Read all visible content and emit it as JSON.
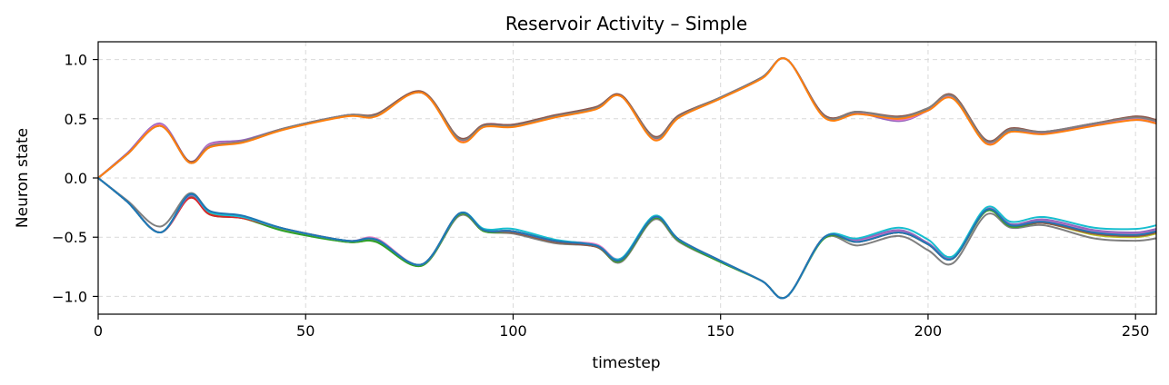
{
  "chart_data": {
    "type": "line",
    "title": "Reservoir Activity – Simple",
    "xlabel": "timestep",
    "ylabel": "Neuron state",
    "xlim": [
      0,
      255
    ],
    "ylim": [
      -1.15,
      1.15
    ],
    "grid": true,
    "legend": "none",
    "xticks": [
      0,
      50,
      100,
      150,
      200,
      250
    ],
    "xtick_labels": [
      "0",
      "50",
      "100",
      "150",
      "200",
      "250"
    ],
    "yticks": [
      1.0,
      0.5,
      0.0,
      -0.5,
      -1.0
    ],
    "ytick_labels": [
      "1.0",
      "0.5",
      "0.0",
      "−0.5",
      "−1.0"
    ],
    "x_knots": [
      0,
      7,
      15,
      22,
      27,
      35,
      45,
      60,
      67,
      78,
      87,
      93,
      100,
      110,
      120,
      126,
      134,
      140,
      150,
      160,
      166,
      175,
      183,
      193,
      200,
      206,
      214,
      220,
      228,
      240,
      250,
      255
    ],
    "upper_base": [
      0.0,
      0.2,
      0.44,
      0.13,
      0.27,
      0.31,
      0.42,
      0.53,
      0.53,
      0.72,
      0.32,
      0.44,
      0.44,
      0.52,
      0.59,
      0.69,
      0.33,
      0.52,
      0.68,
      0.85,
      1.0,
      0.52,
      0.55,
      0.5,
      0.58,
      0.68,
      0.3,
      0.4,
      0.38,
      0.45,
      0.5,
      0.47
    ],
    "lower_base": [
      0.0,
      -0.2,
      -0.46,
      -0.15,
      -0.29,
      -0.33,
      -0.43,
      -0.53,
      -0.52,
      -0.73,
      -0.3,
      -0.44,
      -0.45,
      -0.53,
      -0.57,
      -0.69,
      -0.33,
      -0.52,
      -0.7,
      -0.87,
      -1.0,
      -0.5,
      -0.54,
      -0.46,
      -0.56,
      -0.68,
      -0.27,
      -0.4,
      -0.37,
      -0.46,
      -0.48,
      -0.45
    ],
    "series": [
      {
        "group": "upper",
        "color": "#1f77b4",
        "offsets": [
          0,
          0,
          0.01,
          0,
          0,
          0,
          0,
          0,
          0,
          0,
          0,
          0,
          0,
          0,
          0,
          0,
          0,
          0,
          0,
          0,
          0,
          0,
          0,
          0,
          0,
          0,
          0,
          0,
          0,
          0,
          0,
          0
        ]
      },
      {
        "group": "upper",
        "color": "#9467bd",
        "offsets": [
          0,
          0.01,
          0.02,
          0.01,
          0.02,
          0.01,
          0,
          0,
          0,
          0,
          0.01,
          0.01,
          0.01,
          0,
          0,
          0,
          0.01,
          0,
          0,
          0,
          0,
          0.01,
          0,
          -0.02,
          -0.01,
          0,
          0,
          0.01,
          0,
          0,
          -0.01,
          -0.01
        ]
      },
      {
        "group": "upper",
        "color": "#e377c2",
        "offsets": [
          0,
          0,
          0.01,
          0,
          0.01,
          0,
          0,
          0,
          0,
          0,
          0,
          0,
          0,
          0,
          0,
          0,
          0,
          0,
          0,
          0,
          0,
          0,
          0.01,
          -0.01,
          -0.01,
          0,
          0,
          0.01,
          0.01,
          0.01,
          0,
          0
        ]
      },
      {
        "group": "upper",
        "color": "#8c564b",
        "offsets": [
          0,
          0,
          0,
          0.01,
          0,
          0,
          0,
          0,
          0.01,
          0.01,
          0.02,
          0.01,
          0.01,
          0.01,
          0.01,
          0.01,
          0.02,
          0.01,
          0,
          0,
          0,
          0.01,
          0.01,
          0.02,
          0.01,
          0.02,
          0.02,
          0.02,
          0.01,
          0.01,
          0.02,
          0.02
        ]
      },
      {
        "group": "upper",
        "color": "#7f7f7f",
        "offsets": [
          0,
          0,
          0,
          0,
          0,
          0,
          0,
          0,
          0,
          0,
          0.01,
          0,
          0,
          0,
          0,
          0,
          0.01,
          0,
          0,
          0,
          0,
          0,
          0.01,
          0.01,
          0.01,
          0.01,
          0.01,
          0.01,
          0.01,
          0.01,
          0.01,
          0.01
        ]
      },
      {
        "group": "upper",
        "color": "#ff7f0e",
        "offsets": [
          0,
          0,
          0,
          0,
          -0.01,
          -0.01,
          -0.01,
          -0.01,
          -0.01,
          0,
          -0.01,
          -0.01,
          -0.01,
          -0.01,
          -0.01,
          0,
          -0.01,
          -0.01,
          -0.01,
          -0.01,
          0,
          -0.01,
          -0.01,
          0,
          -0.01,
          -0.01,
          -0.01,
          -0.01,
          -0.01,
          -0.01,
          -0.01,
          -0.01
        ]
      },
      {
        "group": "lower",
        "color": "#7f7f7f",
        "offsets": [
          0,
          0.01,
          0.05,
          0.02,
          0.01,
          0,
          -0.01,
          -0.01,
          -0.01,
          -0.01,
          -0.02,
          -0.01,
          -0.02,
          -0.02,
          -0.01,
          -0.02,
          -0.02,
          -0.02,
          -0.01,
          0,
          0,
          -0.01,
          -0.03,
          -0.03,
          -0.05,
          -0.04,
          -0.04,
          -0.02,
          -0.03,
          -0.05,
          -0.05,
          -0.06
        ]
      },
      {
        "group": "lower",
        "color": "#bcbd22",
        "offsets": [
          0,
          0,
          0,
          0,
          -0.01,
          -0.01,
          -0.01,
          -0.01,
          -0.02,
          -0.01,
          -0.01,
          -0.01,
          -0.01,
          -0.01,
          -0.01,
          -0.01,
          -0.01,
          -0.01,
          -0.01,
          0,
          0,
          -0.01,
          0,
          0,
          0,
          0,
          -0.01,
          -0.01,
          -0.01,
          -0.02,
          -0.02,
          -0.02
        ]
      },
      {
        "group": "lower",
        "color": "#2ca02c",
        "offsets": [
          0,
          0,
          0,
          -0.01,
          -0.02,
          -0.01,
          -0.02,
          -0.01,
          -0.02,
          -0.01,
          -0.01,
          -0.01,
          -0.01,
          -0.01,
          -0.01,
          -0.01,
          -0.01,
          -0.01,
          -0.01,
          0,
          0,
          -0.01,
          0,
          0,
          0,
          0,
          -0.01,
          -0.01,
          -0.01,
          -0.01,
          -0.01,
          -0.01
        ]
      },
      {
        "group": "lower",
        "color": "#8c564b",
        "offsets": [
          0,
          0,
          0,
          0,
          0,
          0,
          0,
          0,
          0,
          0,
          0,
          0,
          -0.01,
          -0.01,
          -0.01,
          0,
          0,
          0,
          0,
          0,
          0,
          0,
          0,
          0,
          0,
          0,
          0,
          0,
          -0.01,
          -0.01,
          -0.01,
          -0.01
        ]
      },
      {
        "group": "lower",
        "color": "#d62728",
        "offsets": [
          0,
          0,
          0,
          -0.02,
          -0.02,
          -0.01,
          0,
          0,
          0,
          0,
          0,
          0,
          0,
          0,
          0,
          0,
          0,
          0,
          0,
          0,
          0,
          0,
          0,
          0,
          0,
          0,
          0,
          0,
          0,
          0,
          0,
          0
        ]
      },
      {
        "group": "lower",
        "color": "#e377c2",
        "offsets": [
          0,
          0,
          0,
          0,
          0,
          0,
          0,
          0,
          0.01,
          0,
          0,
          0,
          0,
          0,
          0.01,
          0.01,
          0,
          0,
          0,
          0,
          0,
          0,
          0.01,
          0.01,
          0.01,
          0.01,
          0.01,
          0.01,
          0.01,
          0.01,
          0.01,
          0.01
        ]
      },
      {
        "group": "lower",
        "color": "#9467bd",
        "offsets": [
          0,
          0,
          0,
          0,
          0,
          0,
          0,
          0,
          0,
          0,
          0,
          0,
          0,
          0,
          0,
          0,
          0,
          0,
          0,
          0,
          0,
          0,
          0.02,
          0.02,
          0.01,
          0.01,
          0,
          0.01,
          0.02,
          0.02,
          0.02,
          0.02
        ]
      },
      {
        "group": "lower",
        "color": "#17becf",
        "offsets": [
          0,
          0,
          0,
          0.01,
          0,
          0,
          0,
          0,
          0,
          0,
          0,
          0.01,
          0.02,
          0.01,
          0,
          0.01,
          0.01,
          0,
          0,
          0,
          0,
          0,
          0.03,
          0.04,
          0.04,
          0.02,
          0.02,
          0.03,
          0.04,
          0.04,
          0.05,
          0.05
        ]
      },
      {
        "group": "lower",
        "color": "#1f77b4",
        "offsets": [
          0,
          0,
          0,
          0.01,
          0.01,
          0.01,
          0,
          0,
          0,
          0,
          0,
          0,
          0,
          0,
          0,
          0,
          0,
          0,
          0,
          0,
          0,
          0,
          0,
          0,
          0,
          0,
          0,
          0,
          0,
          0,
          0,
          0
        ]
      }
    ]
  }
}
